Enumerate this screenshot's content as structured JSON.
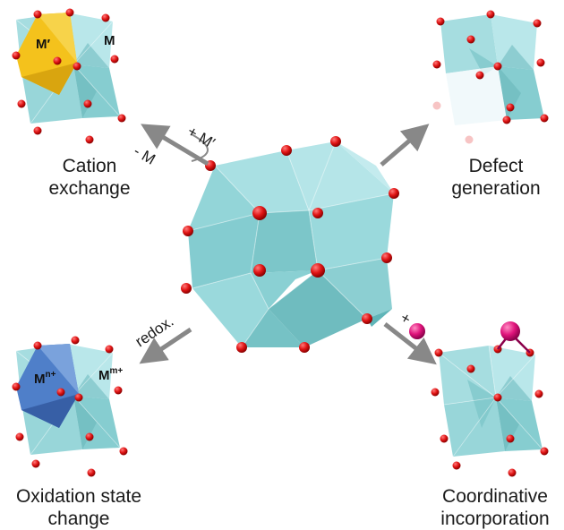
{
  "captions": {
    "cation_exchange": [
      "Cation",
      "exchange"
    ],
    "defect_generation": [
      "Defect",
      "generation"
    ],
    "oxidation_state_change": [
      "Oxidation state",
      "change"
    ],
    "coordinative_incorporation": [
      "Coordinative",
      "incorporation"
    ]
  },
  "labels": {
    "m_prime_top": "M′",
    "m_top": "M",
    "plus_m_prime": "+ M′",
    "minus_m": "- M",
    "redox": "redox.",
    "plus_sign": "+",
    "m_n_plus": "M",
    "n_plus": "n+",
    "m_m_plus": "M",
    "m_plus": "m+"
  },
  "colors": {
    "polyhedron_face": "#8fd3d6",
    "polyhedron_light": "#b7e6e9",
    "polyhedron_dark": "#5fb5b8",
    "oxygen": "#e01414",
    "exchanged_cation": "#f4c21c",
    "oxidized_cation": "#4f7fc9",
    "guest_atom": "#e0147c",
    "arrow": "#888888"
  }
}
